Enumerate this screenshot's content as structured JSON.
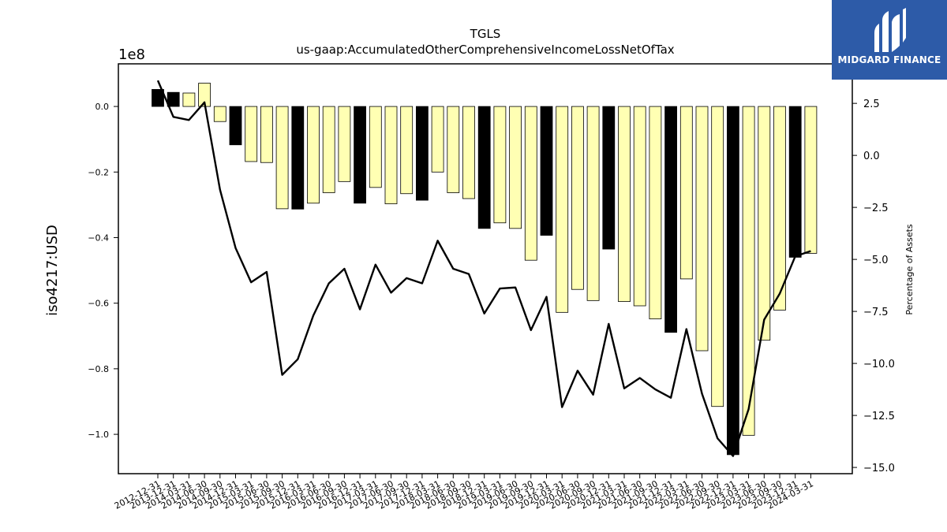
{
  "brand": {
    "name": "MIDGARD FINANCE",
    "logo_icon": "midgard-logo-icon",
    "bg_color": "#2d5ba8"
  },
  "chart_data": {
    "type": "bar",
    "title": "TGLS",
    "subtitle": "us-gaap:AccumulatedOtherComprehensiveIncomeLossNetOfTax",
    "ylabel": "iso4217:USD",
    "y2label": "Percentage of Assets",
    "y_scale_label": "1e8",
    "ylim": [
      -112000000.0,
      13000000.0
    ],
    "y2lim": [
      -15.3,
      4.4
    ],
    "yticks": [
      0,
      -20000000.0,
      -40000000.0,
      -60000000.0,
      -80000000.0,
      -100000000.0
    ],
    "ytick_labels": [
      "0.0",
      "−0.2",
      "−0.4",
      "−0.6",
      "−0.8",
      "−1.0"
    ],
    "y2ticks": [
      2.5,
      0,
      -2.5,
      -5,
      -7.5,
      -10,
      -12.5,
      -15
    ],
    "y2tick_labels": [
      "2.5",
      "0.0",
      "−2.5",
      "−5.0",
      "−7.5",
      "−10.0",
      "−12.5",
      "−15.0"
    ],
    "categories": [
      "2012-12-31",
      "2013-12-31",
      "2014-03-31",
      "2014-06-30",
      "2014-09-30",
      "2014-12-31",
      "2015-03-31",
      "2015-06-30",
      "2015-09-30",
      "2015-12-31",
      "2016-03-31",
      "2016-06-30",
      "2016-09-30",
      "2016-12-31",
      "2017-03-31",
      "2017-06-30",
      "2017-09-30",
      "2017-12-31",
      "2018-03-31",
      "2018-06-30",
      "2018-09-30",
      "2018-12-31",
      "2019-03-31",
      "2019-06-30",
      "2019-09-30",
      "2019-12-31",
      "2020-03-31",
      "2020-06-30",
      "2020-09-30",
      "2020-12-31",
      "2021-03-31",
      "2021-06-30",
      "2021-09-30",
      "2021-12-31",
      "2022-03-31",
      "2022-06-30",
      "2022-09-30",
      "2022-12-31",
      "2023-03-31",
      "2023-06-30",
      "2023-09-30",
      "2023-12-31",
      "2024-03-31"
    ],
    "series": [
      {
        "type": "bar",
        "values": [
          5200000,
          4300000,
          4100000,
          7100000,
          -4600000,
          -11700000,
          -16800000,
          -17100000,
          -31200000,
          -31300000,
          -29500000,
          -26300000,
          -22900000,
          -29500000,
          -24700000,
          -29700000,
          -26600000,
          -28600000,
          -20000000,
          -26300000,
          -28100000,
          -37200000,
          -35500000,
          -37200000,
          -46900000,
          -39300000,
          -62800000,
          -55800000,
          -59200000,
          -43500000,
          -59500000,
          -60800000,
          -64800000,
          -68900000,
          -52600000,
          -74500000,
          -91500000,
          -106200000,
          -100300000,
          -71300000,
          -62100000,
          -46000000,
          -44800000
        ],
        "highlight": [
          true,
          true,
          false,
          false,
          false,
          true,
          false,
          false,
          false,
          true,
          false,
          false,
          false,
          true,
          false,
          false,
          false,
          true,
          false,
          false,
          false,
          true,
          false,
          false,
          false,
          true,
          false,
          false,
          false,
          true,
          false,
          false,
          false,
          true,
          false,
          false,
          false,
          true,
          false,
          false,
          false,
          true,
          false
        ],
        "color_normal": "#ffffb3",
        "color_highlight": "#000000"
      },
      {
        "type": "line",
        "axis": "y2",
        "values": [
          3.6,
          1.85,
          1.7,
          2.55,
          -1.65,
          -4.45,
          -6.1,
          -5.6,
          -10.55,
          -9.8,
          -7.7,
          -6.15,
          -5.45,
          -7.4,
          -5.25,
          -6.6,
          -5.9,
          -6.15,
          -4.1,
          -5.45,
          -5.7,
          -7.6,
          -6.4,
          -6.35,
          -8.4,
          -6.8,
          -12.1,
          -10.35,
          -11.5,
          -8.1,
          -11.2,
          -10.7,
          -11.25,
          -11.65,
          -8.35,
          -11.45,
          -13.6,
          -14.45,
          -12.2,
          -7.9,
          -6.65,
          -4.85,
          -4.6
        ],
        "color": "#000000"
      }
    ]
  }
}
